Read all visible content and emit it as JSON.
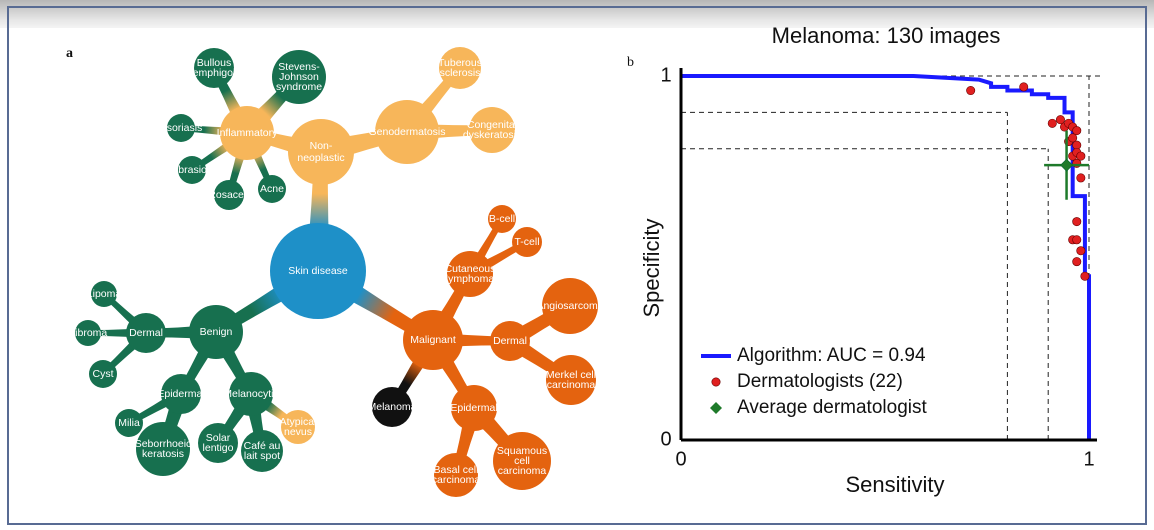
{
  "panel_a": {
    "label": "a",
    "nodes": [
      {
        "id": "skin",
        "lines": [
          "Skin disease"
        ],
        "color": "#1e90c8"
      },
      {
        "id": "nonneo",
        "lines": [
          "Non-",
          "neoplastic"
        ],
        "color": "#f7b65a"
      },
      {
        "id": "inflam",
        "lines": [
          "Inflammatory"
        ],
        "color": "#f7b65a"
      },
      {
        "id": "geno",
        "lines": [
          "Genodermatosis"
        ],
        "color": "#f7b65a"
      },
      {
        "id": "tuber",
        "lines": [
          "Tuberous",
          "sclerosis"
        ],
        "color": "#f7b65a"
      },
      {
        "id": "congen",
        "lines": [
          "Congenital",
          "dyskeratosis"
        ],
        "color": "#f7b65a"
      },
      {
        "id": "bullous",
        "lines": [
          "Bullous",
          "pemphigoid"
        ],
        "color": "#17704f"
      },
      {
        "id": "sjs",
        "lines": [
          "Stevens-",
          "Johnson",
          "syndrome"
        ],
        "color": "#17704f"
      },
      {
        "id": "psor",
        "lines": [
          "Psoriasis"
        ],
        "color": "#17704f"
      },
      {
        "id": "abr",
        "lines": [
          "Abrasion"
        ],
        "color": "#17704f"
      },
      {
        "id": "ros",
        "lines": [
          "Rosacea"
        ],
        "color": "#17704f"
      },
      {
        "id": "acne",
        "lines": [
          "Acne"
        ],
        "color": "#17704f"
      },
      {
        "id": "benign",
        "lines": [
          "Benign"
        ],
        "color": "#17704f"
      },
      {
        "id": "dermalb",
        "lines": [
          "Dermal"
        ],
        "color": "#17704f"
      },
      {
        "id": "lipoma",
        "lines": [
          "Lipoma"
        ],
        "color": "#17704f"
      },
      {
        "id": "fibroma",
        "lines": [
          "Fibroma"
        ],
        "color": "#17704f"
      },
      {
        "id": "cyst",
        "lines": [
          "Cyst"
        ],
        "color": "#17704f"
      },
      {
        "id": "epib",
        "lines": [
          "Epidermal"
        ],
        "color": "#17704f"
      },
      {
        "id": "milia",
        "lines": [
          "Milia"
        ],
        "color": "#17704f"
      },
      {
        "id": "seb",
        "lines": [
          "Seborrhoeic",
          "keratosis"
        ],
        "color": "#17704f"
      },
      {
        "id": "melano",
        "lines": [
          "Melanocytic"
        ],
        "color": "#17704f"
      },
      {
        "id": "solar",
        "lines": [
          "Solar",
          "lentigo"
        ],
        "color": "#17704f"
      },
      {
        "id": "cafe",
        "lines": [
          "Café au",
          "lait spot"
        ],
        "color": "#17704f"
      },
      {
        "id": "atyp",
        "lines": [
          "Atypical",
          "nevus"
        ],
        "color": "#f7b65a"
      },
      {
        "id": "malig",
        "lines": [
          "Malignant"
        ],
        "color": "#e4630f"
      },
      {
        "id": "cutl",
        "lines": [
          "Cutaneous",
          "lymphoma"
        ],
        "color": "#e4630f"
      },
      {
        "id": "bcell",
        "lines": [
          "B-cell"
        ],
        "color": "#e4630f"
      },
      {
        "id": "tcell",
        "lines": [
          "T-cell"
        ],
        "color": "#e4630f"
      },
      {
        "id": "dermalm",
        "lines": [
          "Dermal"
        ],
        "color": "#e4630f"
      },
      {
        "id": "angio",
        "lines": [
          "Angiosarcoma"
        ],
        "color": "#e4630f"
      },
      {
        "id": "merkel",
        "lines": [
          "Merkel cell",
          "carcinoma"
        ],
        "color": "#e4630f"
      },
      {
        "id": "epim",
        "lines": [
          "Epidermal"
        ],
        "color": "#e4630f"
      },
      {
        "id": "bcc",
        "lines": [
          "Basal cell",
          "carcinoma"
        ],
        "color": "#e4630f"
      },
      {
        "id": "scc",
        "lines": [
          "Squamous",
          "cell",
          "carcinoma"
        ],
        "color": "#e4630f"
      },
      {
        "id": "melanoma",
        "lines": [
          "Melanoma"
        ],
        "color": "#111111"
      }
    ]
  },
  "panel_b": {
    "label": "b",
    "chart_data": {
      "type": "line",
      "title": "Melanoma: 130 images",
      "xlabel": "Sensitivity",
      "ylabel": "Specificity",
      "xlim": [
        0,
        1
      ],
      "ylim": [
        0,
        1
      ],
      "x_ticks": [
        "0",
        "1"
      ],
      "y_ticks": [
        "0",
        "1"
      ],
      "legend_placement": "bottom-left",
      "series": [
        {
          "name": "Algorithm: AUC = 0.94",
          "color": "#1a1aff",
          "style": "step",
          "x": [
            0,
            0.57,
            0.73,
            0.73,
            0.76,
            0.76,
            0.8,
            0.8,
            0.86,
            0.86,
            0.9,
            0.9,
            0.94,
            0.94,
            0.96,
            0.96,
            0.99,
            0.99,
            1.0,
            1.0
          ],
          "y": [
            1,
            1,
            0.99,
            0.99,
            0.98,
            0.97,
            0.97,
            0.96,
            0.96,
            0.95,
            0.95,
            0.94,
            0.94,
            0.9,
            0.9,
            0.67,
            0.67,
            0.45,
            0.45,
            0
          ]
        },
        {
          "name": "Dermatologists (22)",
          "color": "#e02020",
          "style": "markers",
          "x": [
            0.71,
            0.84,
            0.91,
            0.93,
            0.94,
            0.95,
            0.96,
            0.97,
            0.95,
            0.96,
            0.97,
            0.96,
            0.97,
            0.98,
            0.97,
            0.98,
            0.97,
            0.96,
            0.97,
            0.98,
            0.97,
            0.99
          ],
          "y": [
            0.96,
            0.97,
            0.87,
            0.88,
            0.86,
            0.87,
            0.86,
            0.85,
            0.82,
            0.83,
            0.81,
            0.78,
            0.79,
            0.78,
            0.76,
            0.72,
            0.6,
            0.55,
            0.55,
            0.52,
            0.49,
            0.45
          ]
        },
        {
          "name": "Average dermatologist",
          "color": "#1e7a2a",
          "style": "marker-errorbar",
          "x": 0.945,
          "y": 0.755,
          "x_err": [
            0.055,
            0.055
          ],
          "y_err": [
            0.095,
            0.095
          ]
        }
      ],
      "reference_lines": {
        "vertical_x": [
          0.8,
          0.9,
          1.0
        ],
        "horizontal_y": [
          0.9,
          0.8,
          1.0
        ]
      }
    }
  }
}
